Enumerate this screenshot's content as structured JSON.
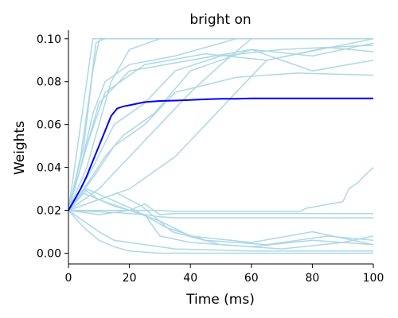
{
  "chart_data": {
    "type": "line",
    "title": "bright on",
    "xlabel": "Time (ms)",
    "ylabel": "Weights",
    "xlim": [
      0,
      100
    ],
    "ylim": [
      -0.005,
      0.104
    ],
    "xticks": [
      0,
      20,
      40,
      60,
      80,
      100
    ],
    "yticks": [
      0.0,
      0.02,
      0.04,
      0.06,
      0.08,
      0.1
    ],
    "ytick_labels": [
      "0.00",
      "0.02",
      "0.04",
      "0.06",
      "0.08",
      "0.10"
    ],
    "grid": false,
    "legend": "none",
    "colors": {
      "individual": "#add8e6",
      "mean": "#0000ff"
    },
    "series": [
      {
        "role": "mean",
        "x": [
          0,
          2,
          4,
          6,
          8,
          10,
          12,
          14,
          16,
          18,
          20,
          25,
          30,
          35,
          40,
          45,
          50,
          55,
          60,
          65,
          70,
          75,
          80,
          85,
          90,
          95,
          100
        ],
        "values": [
          0.02,
          0.025,
          0.03,
          0.036,
          0.043,
          0.05,
          0.057,
          0.064,
          0.0675,
          0.0685,
          0.069,
          0.0705,
          0.071,
          0.0712,
          0.0715,
          0.0718,
          0.072,
          0.072,
          0.0722,
          0.0722,
          0.0722,
          0.0722,
          0.0722,
          0.0722,
          0.0722,
          0.0722,
          0.0722
        ]
      },
      {
        "role": "individual",
        "x": [
          0,
          3,
          6,
          8,
          10,
          30,
          60,
          100
        ],
        "values": [
          0.02,
          0.05,
          0.08,
          0.1,
          0.1,
          0.1,
          0.1,
          0.1
        ]
      },
      {
        "role": "individual",
        "x": [
          0,
          4,
          7,
          9,
          11,
          40,
          70,
          100
        ],
        "values": [
          0.02,
          0.045,
          0.075,
          0.098,
          0.1,
          0.1,
          0.1,
          0.1
        ]
      },
      {
        "role": "individual",
        "x": [
          0,
          5,
          8,
          10,
          12,
          50,
          80,
          100
        ],
        "values": [
          0.02,
          0.05,
          0.085,
          0.099,
          0.1,
          0.1,
          0.1,
          0.1
        ]
      },
      {
        "role": "individual",
        "x": [
          0,
          6,
          10,
          14,
          20,
          30,
          50,
          70,
          100
        ],
        "values": [
          0.02,
          0.04,
          0.06,
          0.08,
          0.095,
          0.1,
          0.1,
          0.1,
          0.1
        ]
      },
      {
        "role": "individual",
        "x": [
          0,
          5,
          10,
          20,
          40,
          60,
          80,
          100
        ],
        "values": [
          0.02,
          0.045,
          0.07,
          0.085,
          0.09,
          0.095,
          0.092,
          0.098
        ]
      },
      {
        "role": "individual",
        "x": [
          0,
          6,
          12,
          25,
          45,
          65,
          85,
          100
        ],
        "values": [
          0.02,
          0.05,
          0.075,
          0.088,
          0.093,
          0.09,
          0.096,
          0.094
        ]
      },
      {
        "role": "individual",
        "x": [
          0,
          8,
          15,
          25,
          35,
          50,
          70,
          100
        ],
        "values": [
          0.02,
          0.04,
          0.06,
          0.07,
          0.085,
          0.092,
          0.095,
          0.097
        ]
      },
      {
        "role": "individual",
        "x": [
          0,
          10,
          20,
          30,
          40,
          50,
          60,
          100
        ],
        "values": [
          0.02,
          0.03,
          0.045,
          0.06,
          0.075,
          0.088,
          0.1,
          0.1
        ]
      },
      {
        "role": "individual",
        "x": [
          0,
          10,
          20,
          35,
          45,
          55,
          65,
          100
        ],
        "values": [
          0.02,
          0.025,
          0.03,
          0.045,
          0.06,
          0.075,
          0.09,
          0.1
        ]
      },
      {
        "role": "individual",
        "x": [
          0,
          8,
          15,
          25,
          35,
          55,
          75,
          100
        ],
        "values": [
          0.02,
          0.035,
          0.05,
          0.06,
          0.075,
          0.082,
          0.084,
          0.083
        ]
      },
      {
        "role": "individual",
        "x": [
          0,
          5,
          12,
          18,
          28,
          40,
          60,
          80,
          100
        ],
        "values": [
          0.02,
          0.03,
          0.045,
          0.055,
          0.065,
          0.085,
          0.095,
          0.085,
          0.09
        ]
      },
      {
        "role": "individual",
        "x": [
          0,
          4,
          8,
          12,
          20,
          35,
          55,
          75,
          100
        ],
        "values": [
          0.02,
          0.04,
          0.065,
          0.08,
          0.088,
          0.092,
          0.1,
          0.1,
          0.1
        ]
      },
      {
        "role": "individual",
        "x": [
          0,
          5,
          10,
          15,
          20,
          30,
          40,
          100
        ],
        "values": [
          0.02,
          0.012,
          0.006,
          0.003,
          0.001,
          0.0,
          0.0,
          0.0
        ]
      },
      {
        "role": "individual",
        "x": [
          0,
          5,
          10,
          15,
          25,
          35,
          60,
          100
        ],
        "values": [
          0.02,
          0.015,
          0.01,
          0.006,
          0.004,
          0.002,
          0.001,
          0.001
        ]
      },
      {
        "role": "individual",
        "x": [
          0,
          5,
          15,
          25,
          30,
          40,
          60,
          80,
          100
        ],
        "values": [
          0.02,
          0.028,
          0.022,
          0.018,
          0.008,
          0.005,
          0.003,
          0.006,
          0.004
        ]
      },
      {
        "role": "individual",
        "x": [
          0,
          6,
          14,
          22,
          32,
          45,
          65,
          85,
          100
        ],
        "values": [
          0.02,
          0.03,
          0.025,
          0.02,
          0.012,
          0.006,
          0.004,
          0.008,
          0.006
        ]
      },
      {
        "role": "individual",
        "x": [
          0,
          8,
          16,
          24,
          34,
          50,
          70,
          90,
          100
        ],
        "values": [
          0.02,
          0.024,
          0.028,
          0.022,
          0.01,
          0.004,
          0.002,
          0.005,
          0.008
        ]
      },
      {
        "role": "individual",
        "x": [
          0,
          5,
          10,
          20,
          30,
          40,
          60,
          80,
          100
        ],
        "values": [
          0.02,
          0.03,
          0.025,
          0.02,
          0.015,
          0.008,
          0.005,
          0.01,
          0.004
        ]
      },
      {
        "role": "individual",
        "x": [
          0,
          10,
          20,
          25,
          30,
          35,
          100
        ],
        "values": [
          0.02,
          0.018,
          0.02,
          0.023,
          0.018,
          0.0185,
          0.0185
        ]
      },
      {
        "role": "individual",
        "x": [
          0,
          15,
          25,
          30,
          35,
          100
        ],
        "values": [
          0.02,
          0.019,
          0.018,
          0.017,
          0.0165,
          0.0165
        ]
      },
      {
        "role": "individual",
        "x": [
          0,
          20,
          30,
          35,
          76,
          78,
          90,
          92,
          95,
          97,
          100
        ],
        "values": [
          0.02,
          0.02,
          0.02,
          0.0195,
          0.0195,
          0.021,
          0.024,
          0.03,
          0.033,
          0.036,
          0.04
        ]
      }
    ]
  }
}
